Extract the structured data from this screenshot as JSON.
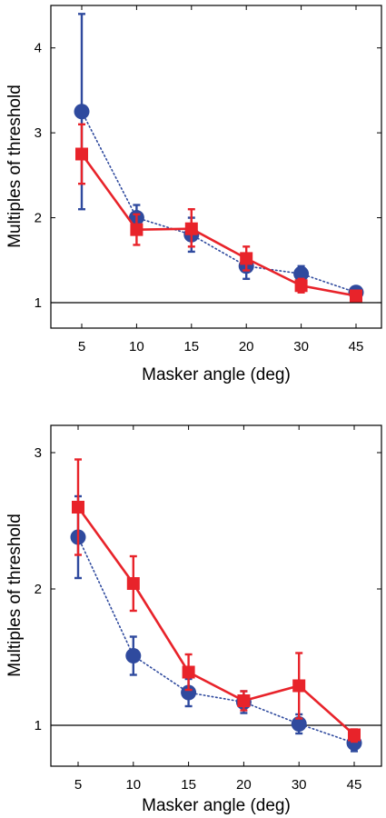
{
  "chart_data": [
    {
      "type": "line",
      "categories": [
        "5",
        "10",
        "15",
        "20",
        "30",
        "45"
      ],
      "xlabel": "Masker angle (deg)",
      "ylabel": "Multiples of threshold",
      "ylim": [
        0.7,
        4.5
      ],
      "yticks": [
        1,
        2,
        3,
        4
      ],
      "reference_line": 1,
      "grid": false,
      "series": [
        {
          "color": "#e8232a",
          "marker": "square",
          "line_style": "solid",
          "values": [
            2.75,
            1.86,
            1.87,
            1.52,
            1.2,
            1.08
          ],
          "error_low": [
            2.4,
            1.68,
            1.66,
            1.38,
            1.12,
            1.04
          ],
          "error_high": [
            3.1,
            2.04,
            2.1,
            1.66,
            1.28,
            1.12
          ]
        },
        {
          "color": "#2f4a9e",
          "marker": "circle",
          "line_style": "dotted",
          "values": [
            3.25,
            2.0,
            1.8,
            1.43,
            1.34,
            1.12
          ],
          "error_low": [
            2.1,
            1.85,
            1.6,
            1.28,
            1.25,
            1.08
          ],
          "error_high": [
            4.4,
            2.15,
            2.0,
            1.58,
            1.43,
            1.16
          ]
        }
      ]
    },
    {
      "type": "line",
      "categories": [
        "5",
        "10",
        "15",
        "20",
        "30",
        "45"
      ],
      "xlabel": "Masker angle (deg)",
      "ylabel": "Multiples of threshold",
      "ylim": [
        0.7,
        3.2
      ],
      "yticks": [
        1,
        2,
        3
      ],
      "reference_line": 1,
      "grid": false,
      "series": [
        {
          "color": "#e8232a",
          "marker": "square",
          "line_style": "solid",
          "values": [
            2.6,
            2.04,
            1.39,
            1.18,
            1.29,
            0.93
          ],
          "error_low": [
            2.25,
            1.84,
            1.26,
            1.11,
            1.05,
            0.88
          ],
          "error_high": [
            2.95,
            2.24,
            1.52,
            1.25,
            1.53,
            0.97
          ]
        },
        {
          "color": "#2f4a9e",
          "marker": "circle",
          "line_style": "dotted",
          "values": [
            2.38,
            1.51,
            1.24,
            1.17,
            1.01,
            0.87
          ],
          "error_low": [
            2.08,
            1.37,
            1.14,
            1.09,
            0.94,
            0.81
          ],
          "error_high": [
            2.68,
            1.65,
            1.34,
            1.25,
            1.08,
            0.93
          ]
        }
      ]
    }
  ]
}
